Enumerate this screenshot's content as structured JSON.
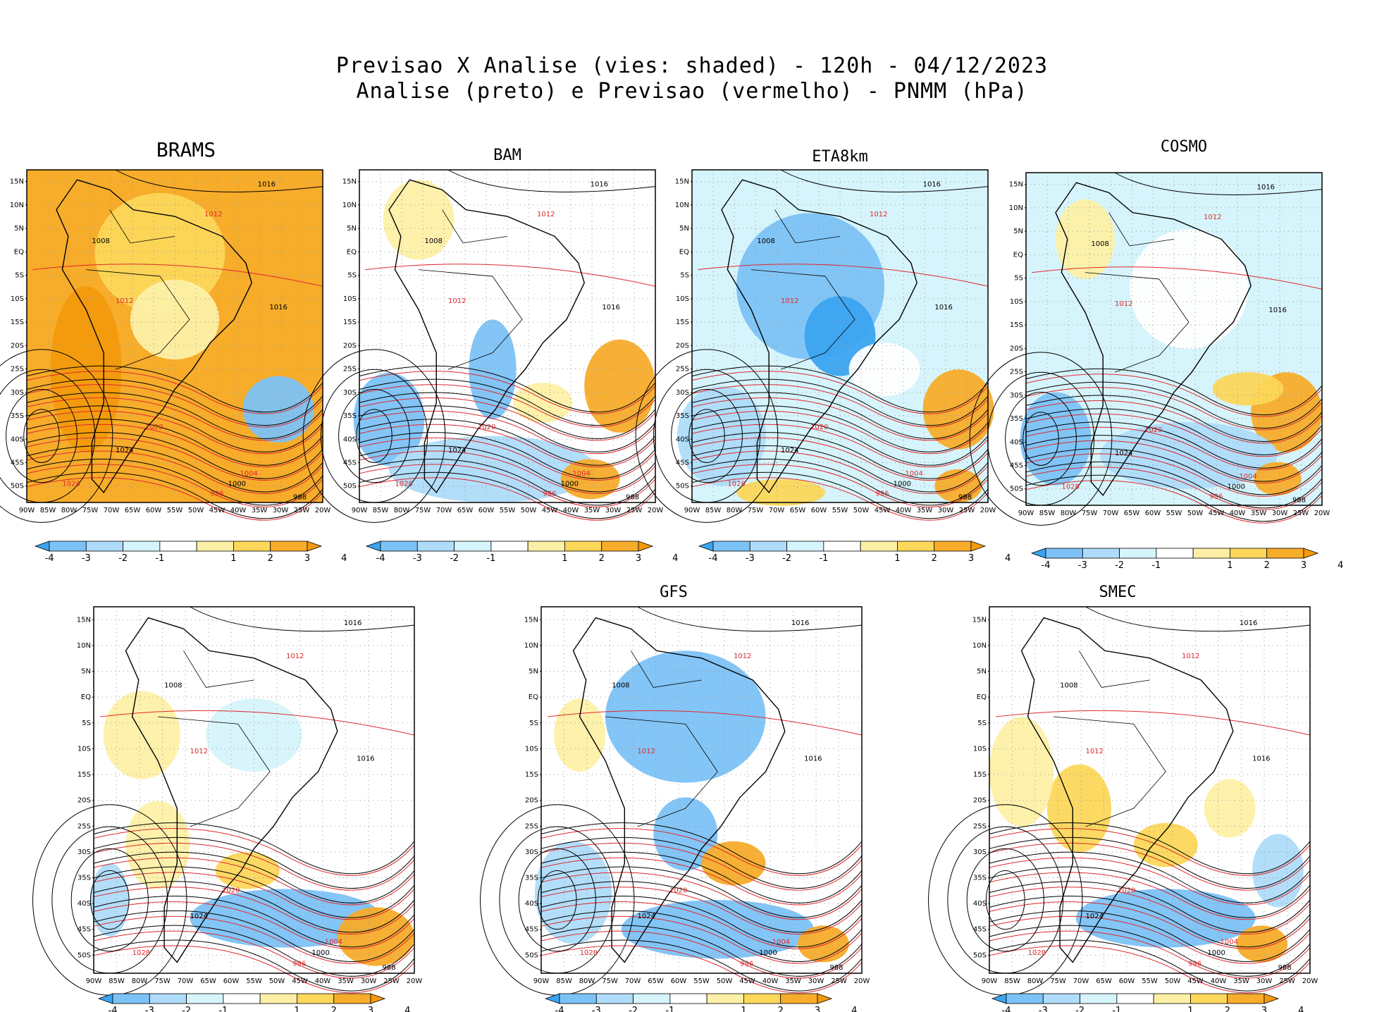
{
  "header": {
    "line1": "Previsao X Analise (vies: shaded) - 120h - 04/12/2023",
    "line2": "Analise (preto) e Previsao (vermelho) - PNMM (hPa)"
  },
  "panels": [
    {
      "id": "brams",
      "title": "BRAMS"
    },
    {
      "id": "bam",
      "title": "BAM"
    },
    {
      "id": "eta",
      "title": "ETA8km"
    },
    {
      "id": "cosmo",
      "title": "COSMO"
    },
    {
      "id": "unnamed",
      "title": ""
    },
    {
      "id": "gfs",
      "title": "GFS"
    },
    {
      "id": "smec",
      "title": "SMEC"
    }
  ],
  "lat_labels": [
    "15N",
    "10N",
    "5N",
    "EQ",
    "5S",
    "10S",
    "15S",
    "20S",
    "25S",
    "30S",
    "35S",
    "40S",
    "45S",
    "50S"
  ],
  "lon_labels": [
    "90W",
    "85W",
    "80W",
    "75W",
    "70W",
    "65W",
    "60W",
    "55W",
    "50W",
    "45W",
    "40W",
    "35W",
    "30W",
    "25W",
    "20W"
  ],
  "colorbar": {
    "labels": [
      "-4",
      "-3",
      "-2",
      "-1",
      "1",
      "2",
      "3",
      "4"
    ],
    "colors": [
      "#3ba4f0",
      "#7cc2f6",
      "#aedcfa",
      "#d6f4fb",
      "#ffffff",
      "#fdf0a6",
      "#fcd75a",
      "#f7ac2a",
      "#f39a0c"
    ]
  },
  "isobar_labels": [
    "1016",
    "1012",
    "1008",
    "1004",
    "1000",
    "996",
    "988",
    "1020",
    "1024",
    "1028"
  ],
  "line_colors": {
    "analysis": "#000000",
    "forecast": "#e0282d"
  }
}
